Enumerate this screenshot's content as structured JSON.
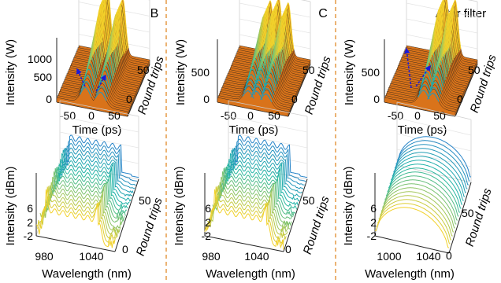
{
  "panel_labels": [
    "B",
    "C",
    "After filter"
  ],
  "chart_data": [
    {
      "type": "waterfall3d",
      "panel": "B",
      "row": "time",
      "xlabel": "Time (ps)",
      "ylabel": "Intensity (W)",
      "zlabel": "Round trips",
      "xticks": [
        "-50",
        "0",
        "50"
      ],
      "yticks": [
        "0",
        "500",
        "1000"
      ],
      "zticks": [
        "0",
        "50"
      ],
      "xlim": [
        -75,
        75
      ],
      "ylim": [
        0,
        1000
      ],
      "zlim": [
        0,
        60
      ],
      "peaks": [
        {
          "x": -14,
          "value": 1050
        },
        {
          "x": 18,
          "value": 930
        }
      ],
      "annotations": [
        "evolution-arrows"
      ]
    },
    {
      "type": "waterfall3d",
      "panel": "C",
      "row": "time",
      "xlabel": "Time (ps)",
      "ylabel": "Intensity (W)",
      "zlabel": "Round trips",
      "xticks": [
        "-50",
        "0",
        "50"
      ],
      "yticks": [
        "0",
        "500"
      ],
      "zticks": [
        "0",
        "50"
      ],
      "xlim": [
        -75,
        75
      ],
      "ylim": [
        0,
        800
      ],
      "zlim": [
        0,
        60
      ],
      "peaks": [
        {
          "x": -10,
          "value": 700
        },
        {
          "x": 8,
          "value": 760
        },
        {
          "x": 28,
          "value": 720
        }
      ]
    },
    {
      "type": "waterfall3d",
      "panel": "After filter",
      "row": "time",
      "xlabel": "Time (ps)",
      "ylabel": "Intensity (W)",
      "zlabel": "Round trips",
      "xticks": [
        "-50",
        "0",
        "50"
      ],
      "yticks": [
        "0",
        "500"
      ],
      "zticks": [
        "0",
        "50"
      ],
      "xlim": [
        -75,
        75
      ],
      "ylim": [
        0,
        800
      ],
      "zlim": [
        0,
        60
      ],
      "peaks": [
        {
          "x": 8,
          "value": 820
        },
        {
          "x": 28,
          "value": 760
        }
      ],
      "annotations": [
        "evolution-arrows"
      ]
    },
    {
      "type": "waterfall3d",
      "panel": "B",
      "row": "spectrum",
      "xlabel": "Wavelength (nm)",
      "ylabel": "Intensity (dBm)",
      "zlabel": "Round trips",
      "xticks": [
        "980",
        "1040"
      ],
      "yticks": [
        "-2",
        "2",
        "6"
      ],
      "zticks": [
        "0",
        "50"
      ],
      "xlim": [
        960,
        1070
      ],
      "ylim": [
        -2,
        10
      ],
      "zlim": [
        0,
        60
      ]
    },
    {
      "type": "waterfall3d",
      "panel": "C",
      "row": "spectrum",
      "xlabel": "Wavelength (nm)",
      "ylabel": "Intensity (dBm)",
      "zlabel": "Round trips",
      "xticks": [
        "980",
        "1040"
      ],
      "yticks": [
        "-2",
        "2",
        "6"
      ],
      "zticks": [
        "0",
        "50"
      ],
      "xlim": [
        960,
        1070
      ],
      "ylim": [
        -2,
        10
      ],
      "zlim": [
        0,
        60
      ]
    },
    {
      "type": "waterfall3d",
      "panel": "After filter",
      "row": "spectrum",
      "xlabel": "Wavelength (nm)",
      "ylabel": "Intensity (dBm)",
      "zlabel": "Round trips",
      "xticks": [
        "1000",
        "1040"
      ],
      "yticks": [
        "-2",
        "2",
        "6"
      ],
      "zticks": [
        "0",
        "50"
      ],
      "xlim": [
        985,
        1070
      ],
      "ylim": [
        -2,
        10
      ],
      "zlim": [
        0,
        60
      ]
    }
  ],
  "colors": {
    "surface_fill": "#d9731a",
    "surface_line": "#3a2a1a",
    "peak_low": "#2b6fd6",
    "peak_mid": "#1fb6a6",
    "peak_high": "#f2d12a",
    "arrow": "#1a1adb",
    "separator": "#e08a2a"
  }
}
